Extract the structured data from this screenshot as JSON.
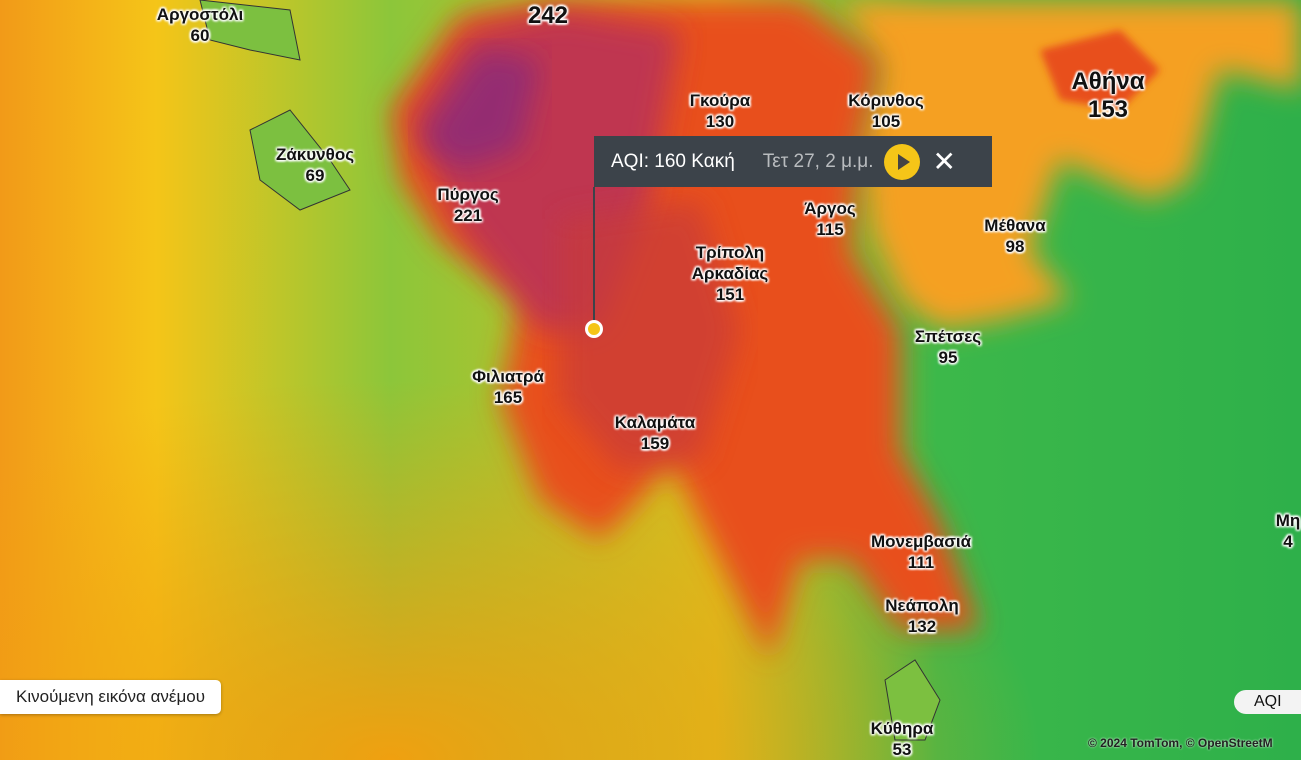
{
  "map": {
    "layer": "AQI",
    "colors": {
      "good": "#3cb84a",
      "moderate": "#f5c518",
      "unhealthy": "#e8501c",
      "very_unhealthy": "#9b2a6a"
    },
    "places": [
      {
        "name": "Αργοστόλι",
        "aqi": "60"
      },
      {
        "name": "",
        "aqi": "242"
      },
      {
        "name": "Ζάκυνθος",
        "aqi": "69"
      },
      {
        "name": "Πύργος",
        "aqi": "221"
      },
      {
        "name": "Γκούρα",
        "aqi": "130"
      },
      {
        "name": "Κόρινθος",
        "aqi": "105"
      },
      {
        "name": "Αθήνα",
        "aqi": "153"
      },
      {
        "name": "Άργος",
        "aqi": "115"
      },
      {
        "name": "Μέθανα",
        "aqi": "98"
      },
      {
        "name": "Τρίπολη Αρκαδίας",
        "aqi": "151"
      },
      {
        "name": "Σπέτσες",
        "aqi": "95"
      },
      {
        "name": "Φιλιατρά",
        "aqi": "165"
      },
      {
        "name": "Καλαμάτα",
        "aqi": "159"
      },
      {
        "name": "Μονεμβασιά",
        "aqi": "111"
      },
      {
        "name": "Νεάπολη",
        "aqi": "132"
      },
      {
        "name": "Κύθηρα",
        "aqi": "53"
      },
      {
        "name": "Μη",
        "aqi": "4"
      }
    ]
  },
  "popup": {
    "aqi_text": "AQI: 160 Κακή",
    "time": "Τετ 27, 2 μ.μ.",
    "play_icon": "play-icon",
    "close_icon": "close-icon"
  },
  "wind_toggle": "Κινούμενη εικόνα ανέμου",
  "layer_button": "AQI",
  "attribution": "© 2024 TomTom,  © OpenStreetM"
}
